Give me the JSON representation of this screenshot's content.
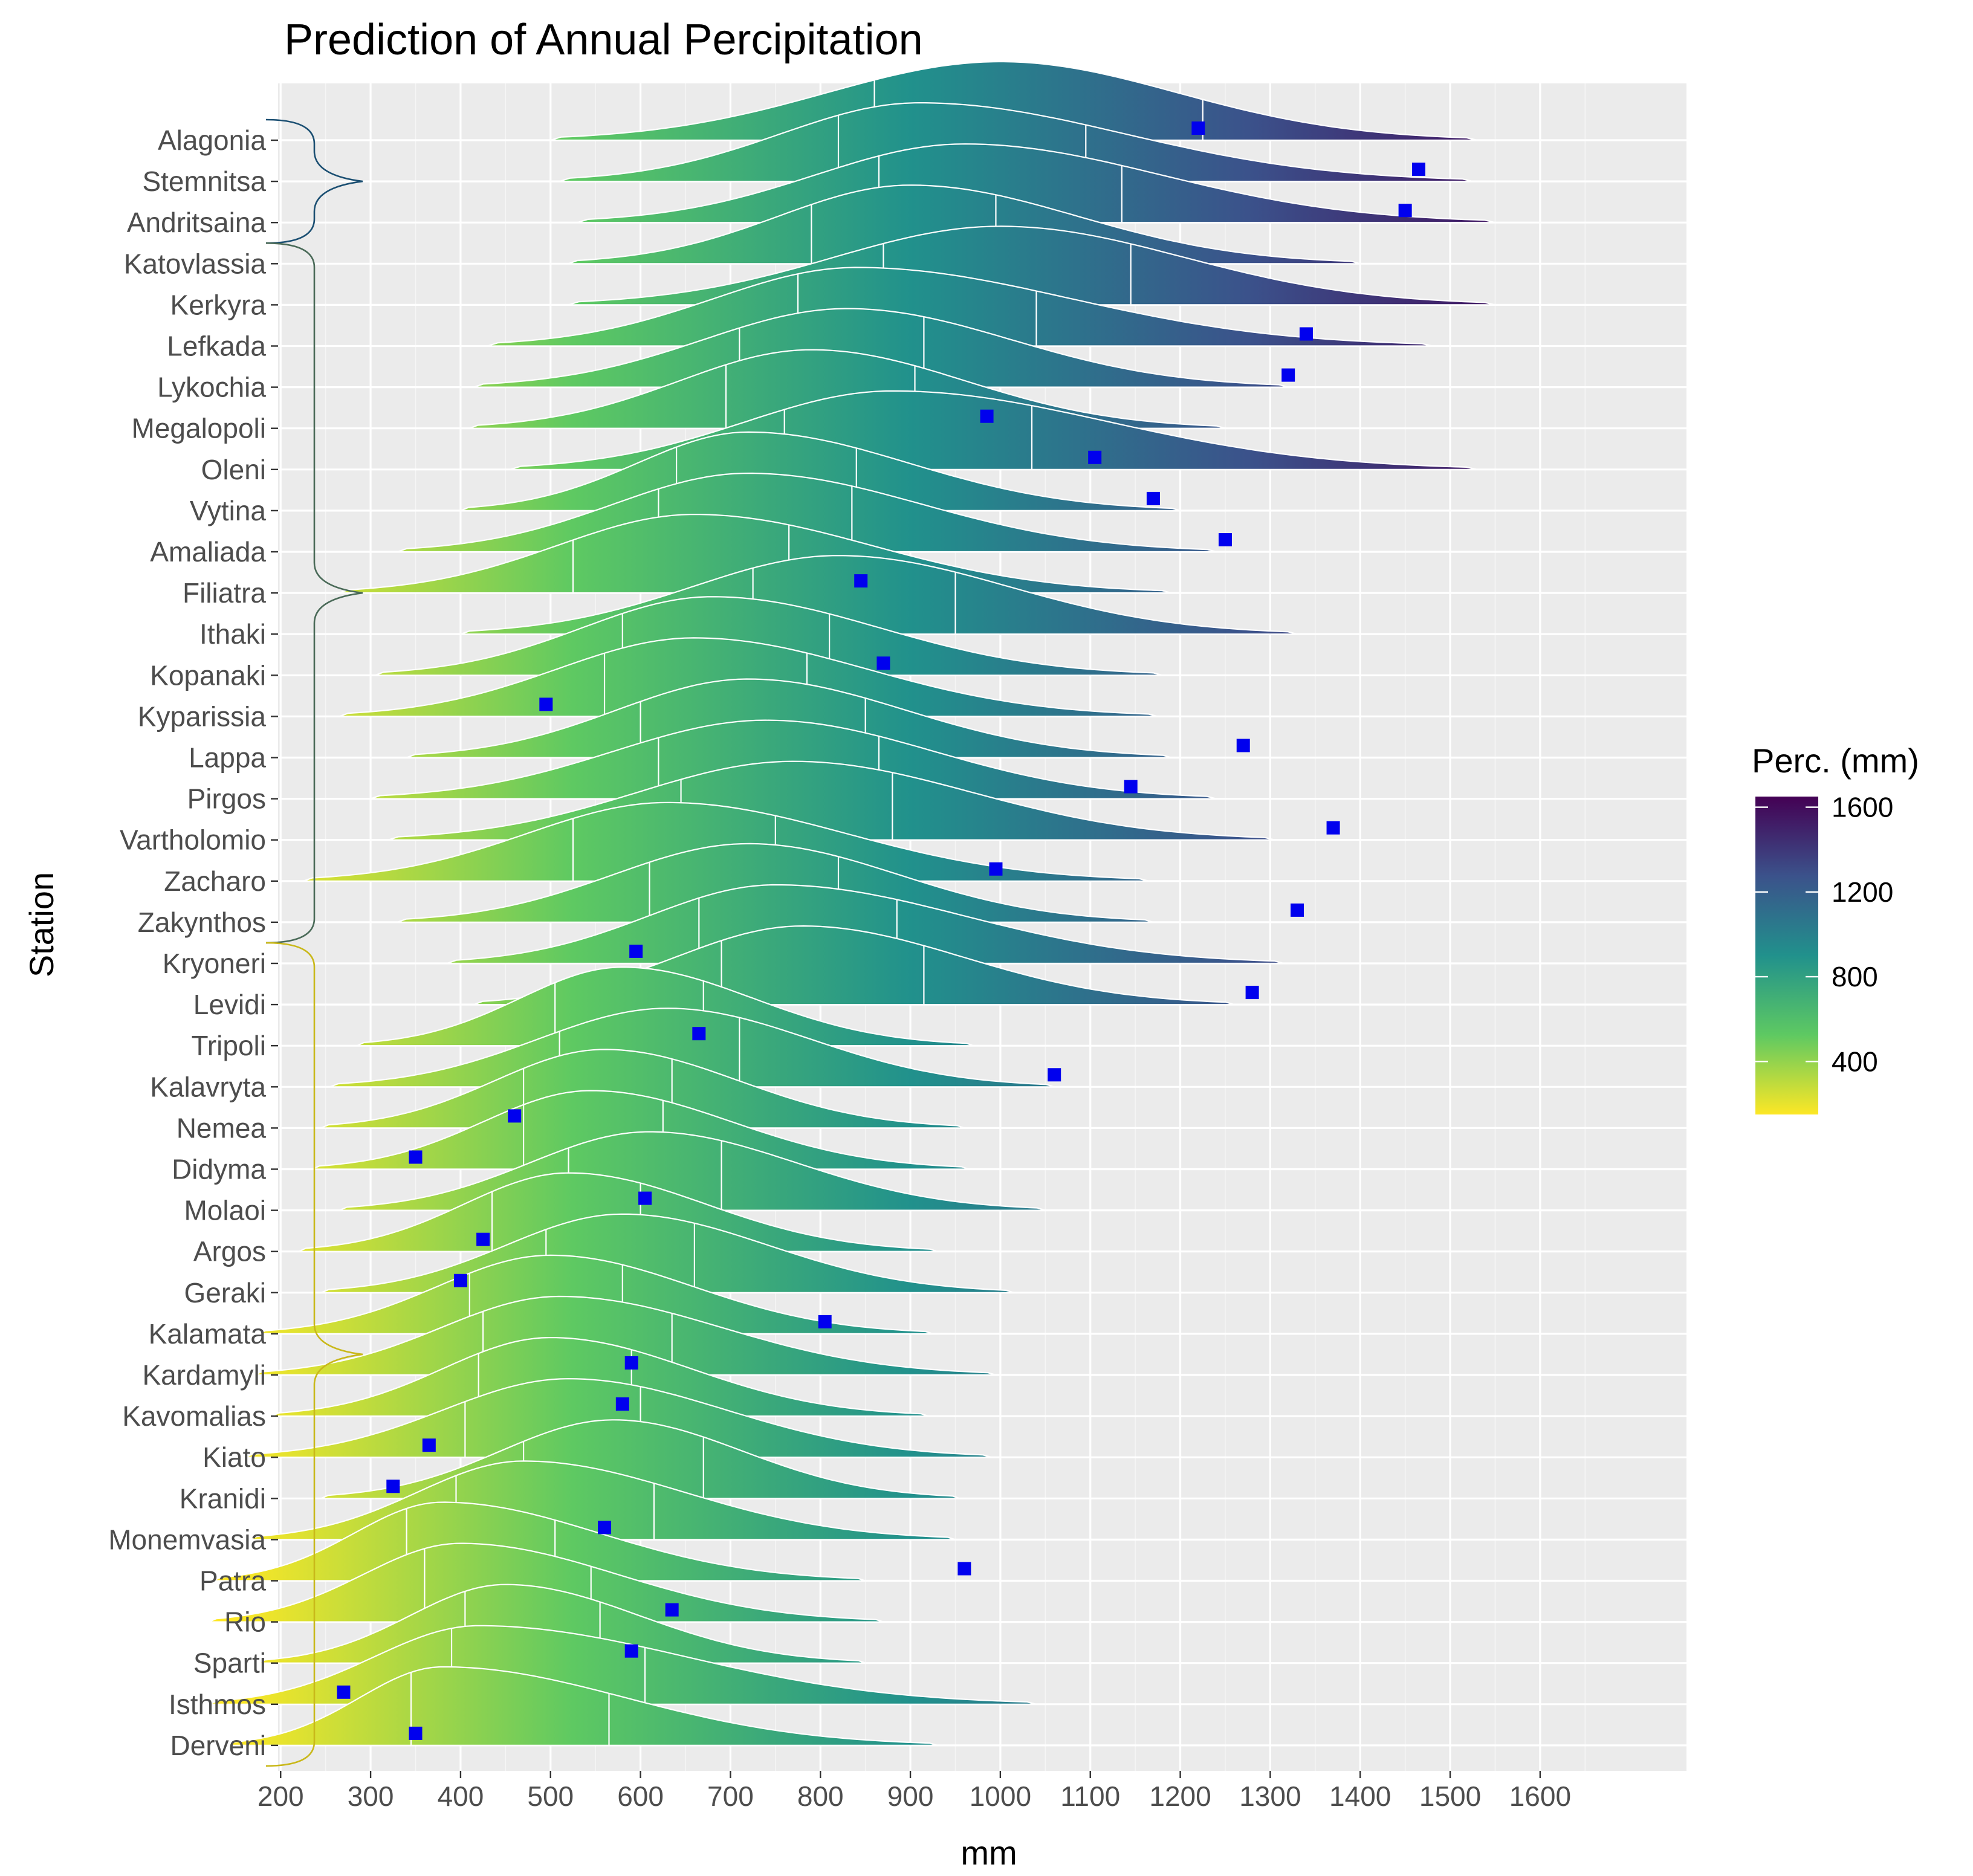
{
  "chart_data": {
    "type": "ridgeline",
    "title": "Prediction of Annual Percipitation",
    "xlabel": "mm",
    "ylabel": "Station",
    "xlim": [
      0,
      1650
    ],
    "x_ticks": [
      200,
      300,
      400,
      500,
      600,
      700,
      800,
      900,
      1000,
      1100,
      1200,
      1300,
      1400,
      1500,
      1600
    ],
    "grid": true,
    "legend": {
      "title": "Perc. (mm)",
      "position": "right",
      "breaks": [
        400,
        800,
        1200,
        1600
      ],
      "range": [
        150,
        1650
      ],
      "colors": [
        "#fde725",
        "#5ec962",
        "#21918c",
        "#3b528b",
        "#440154"
      ]
    },
    "groups": [
      {
        "name": "group-1",
        "start": "Alagonia",
        "end": "Andritsaina",
        "color": "#1b4f72"
      },
      {
        "name": "group-2",
        "start": "Katovlassia",
        "end": "Zakynthos",
        "color": "#4a6a58"
      },
      {
        "name": "group-3",
        "start": "Kryoneri",
        "end": "Derveni",
        "color": "#c9b81a"
      }
    ],
    "series": [
      {
        "station": "Alagonia",
        "min": 500,
        "mode": 1000,
        "q1": 860,
        "q3": 1225,
        "max": 1530,
        "observed": 1220
      },
      {
        "station": "Stemnitsa",
        "min": 510,
        "mode": 910,
        "q1": 820,
        "q3": 1095,
        "max": 1525,
        "observed": 1465
      },
      {
        "station": "Andritsaina",
        "min": 530,
        "mode": 960,
        "q1": 865,
        "q3": 1135,
        "max": 1550,
        "observed": 1450
      },
      {
        "station": "Katovlassia",
        "min": 520,
        "mode": 900,
        "q1": 790,
        "q3": 995,
        "max": 1400,
        "observed": null
      },
      {
        "station": "Kerkyra",
        "min": 520,
        "mode": 1000,
        "q1": 870,
        "q3": 1145,
        "max": 1550,
        "observed": null
      },
      {
        "station": "Lefkada",
        "min": 430,
        "mode": 840,
        "q1": 775,
        "q3": 1040,
        "max": 1480,
        "observed": 1340
      },
      {
        "station": "Lykochia",
        "min": 415,
        "mode": 830,
        "q1": 710,
        "q3": 915,
        "max": 1320,
        "observed": 1320
      },
      {
        "station": "Megalopoli",
        "min": 410,
        "mode": 790,
        "q1": 695,
        "q3": 905,
        "max": 1250,
        "observed": 985
      },
      {
        "station": "Oleni",
        "min": 455,
        "mode": 880,
        "q1": 760,
        "q3": 1035,
        "max": 1530,
        "observed": 1105
      },
      {
        "station": "Vytina",
        "min": 400,
        "mode": 720,
        "q1": 640,
        "q3": 840,
        "max": 1200,
        "observed": 1170
      },
      {
        "station": "Amaliada",
        "min": 330,
        "mode": 720,
        "q1": 620,
        "q3": 835,
        "max": 1240,
        "observed": 1250
      },
      {
        "station": "Filiatra",
        "min": 265,
        "mode": 660,
        "q1": 525,
        "q3": 765,
        "max": 1190,
        "observed": 845
      },
      {
        "station": "Ithaki",
        "min": 400,
        "mode": 820,
        "q1": 725,
        "q3": 950,
        "max": 1330,
        "observed": null
      },
      {
        "station": "Kopanaki",
        "min": 305,
        "mode": 680,
        "q1": 580,
        "q3": 810,
        "max": 1180,
        "observed": 870
      },
      {
        "station": "Kyparissia",
        "min": 265,
        "mode": 660,
        "q1": 560,
        "q3": 785,
        "max": 1175,
        "observed": 495
      },
      {
        "station": "Lappa",
        "min": 340,
        "mode": 720,
        "q1": 600,
        "q3": 850,
        "max": 1190,
        "observed": 1270
      },
      {
        "station": "Pirgos",
        "min": 300,
        "mode": 740,
        "q1": 620,
        "q3": 865,
        "max": 1240,
        "observed": 1145
      },
      {
        "station": "Vartholomio",
        "min": 320,
        "mode": 770,
        "q1": 645,
        "q3": 880,
        "max": 1305,
        "observed": 1370
      },
      {
        "station": "Zacharo",
        "min": 225,
        "mode": 630,
        "q1": 525,
        "q3": 750,
        "max": 1165,
        "observed": 995
      },
      {
        "station": "Zakynthos",
        "min": 330,
        "mode": 720,
        "q1": 610,
        "q3": 820,
        "max": 1170,
        "observed": 1330
      },
      {
        "station": "Kryoneri",
        "min": 385,
        "mode": 750,
        "q1": 665,
        "q3": 885,
        "max": 1315,
        "observed": 595
      },
      {
        "station": "Levidi",
        "min": 415,
        "mode": 780,
        "q1": 690,
        "q3": 915,
        "max": 1260,
        "observed": 1280
      },
      {
        "station": "Tripoli",
        "min": 285,
        "mode": 580,
        "q1": 505,
        "q3": 670,
        "max": 970,
        "observed": 665
      },
      {
        "station": "Kalavryta",
        "min": 255,
        "mode": 630,
        "q1": 510,
        "q3": 710,
        "max": 1060,
        "observed": 1060
      },
      {
        "station": "Nemea",
        "min": 245,
        "mode": 560,
        "q1": 470,
        "q3": 635,
        "max": 960,
        "observed": 460
      },
      {
        "station": "Didyma",
        "min": 235,
        "mode": 545,
        "q1": 470,
        "q3": 625,
        "max": 965,
        "observed": 350
      },
      {
        "station": "Molaoi",
        "min": 265,
        "mode": 610,
        "q1": 520,
        "q3": 690,
        "max": 1050,
        "observed": 605
      },
      {
        "station": "Argos",
        "min": 220,
        "mode": 520,
        "q1": 435,
        "q3": 600,
        "max": 930,
        "observed": 425
      },
      {
        "station": "Geraki",
        "min": 245,
        "mode": 580,
        "q1": 495,
        "q3": 660,
        "max": 1015,
        "observed": 400
      },
      {
        "station": "Kalamata",
        "min": 175,
        "mode": 500,
        "q1": 410,
        "q3": 580,
        "max": 925,
        "observed": 805
      },
      {
        "station": "Kardamyli",
        "min": 170,
        "mode": 510,
        "q1": 425,
        "q3": 635,
        "max": 995,
        "observed": 590
      },
      {
        "station": "Kavomalias",
        "min": 190,
        "mode": 500,
        "q1": 420,
        "q3": 590,
        "max": 920,
        "observed": 580
      },
      {
        "station": "Kiato",
        "min": 160,
        "mode": 520,
        "q1": 405,
        "q3": 600,
        "max": 990,
        "observed": 365
      },
      {
        "station": "Kranidi",
        "min": 245,
        "mode": 570,
        "q1": 470,
        "q3": 670,
        "max": 955,
        "observed": 325
      },
      {
        "station": "Monemvasia",
        "min": 165,
        "mode": 470,
        "q1": 395,
        "q3": 615,
        "max": 950,
        "observed": 560
      },
      {
        "station": "Patra",
        "min": 125,
        "mode": 380,
        "q1": 340,
        "q3": 505,
        "max": 850,
        "observed": 960
      },
      {
        "station": "Rio",
        "min": 120,
        "mode": 400,
        "q1": 360,
        "q3": 545,
        "max": 870,
        "observed": 635
      },
      {
        "station": "Sparti",
        "min": 175,
        "mode": 450,
        "q1": 405,
        "q3": 555,
        "max": 850,
        "observed": 590
      },
      {
        "station": "Isthmos",
        "min": 120,
        "mode": 420,
        "q1": 390,
        "q3": 605,
        "max": 1040,
        "observed": 270
      },
      {
        "station": "Derveni",
        "min": 140,
        "mode": 380,
        "q1": 345,
        "q3": 565,
        "max": 930,
        "observed": 350
      }
    ]
  }
}
